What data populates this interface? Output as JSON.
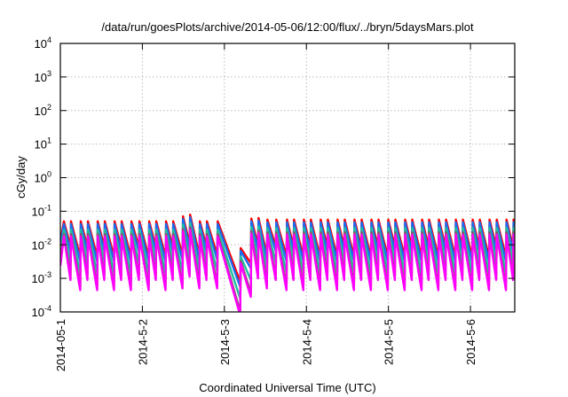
{
  "chart_data": {
    "type": "line",
    "title": "/data/run/goesPlots/archive/2014-05-06/12:00/flux/../bryn/5daysMars.plot",
    "xlabel": "Coordinated Universal Time (UTC)",
    "ylabel": "cGy/day",
    "yscale": "log",
    "ylim_log10": [
      -4,
      4
    ],
    "xlim_days": [
      0,
      5.54
    ],
    "grid": true,
    "y_ticks": [
      {
        "base": "10",
        "exp": "4",
        "log10": 4
      },
      {
        "base": "10",
        "exp": "3",
        "log10": 3
      },
      {
        "base": "10",
        "exp": "2",
        "log10": 2
      },
      {
        "base": "10",
        "exp": "1",
        "log10": 1
      },
      {
        "base": "10",
        "exp": "0",
        "log10": 0
      },
      {
        "base": "10",
        "exp": "-1",
        "log10": -1
      },
      {
        "base": "10",
        "exp": "-2",
        "log10": -2
      },
      {
        "base": "10",
        "exp": "-3",
        "log10": -3
      },
      {
        "base": "10",
        "exp": "-4",
        "log10": -4
      }
    ],
    "x_ticks": [
      {
        "label": "2014-05-1",
        "day": 0
      },
      {
        "label": "2014-5-2",
        "day": 1
      },
      {
        "label": "2014-5-3",
        "day": 2
      },
      {
        "label": "2014-5-4",
        "day": 3
      },
      {
        "label": "2014-5-5",
        "day": 4
      },
      {
        "label": "2014-5-6",
        "day": 5
      }
    ],
    "reference_start": [
      0,
      -1.9
    ],
    "reference_teeth_note": "each tooth: [day, peak log10, value log10 just before next tooth] for the top (red) series",
    "reference_teeth": [
      [
        0.043,
        -1.3,
        -2.05
      ],
      [
        0.13,
        -1.3,
        -2.35
      ],
      [
        0.249,
        -1.3,
        -2.05
      ],
      [
        0.336,
        -1.3,
        -2.35
      ],
      [
        0.455,
        -1.3,
        -2.05
      ],
      [
        0.542,
        -1.3,
        -2.35
      ],
      [
        0.661,
        -1.3,
        -2.05
      ],
      [
        0.748,
        -1.3,
        -2.35
      ],
      [
        0.867,
        -1.3,
        -2.05
      ],
      [
        0.964,
        -1.3,
        -2.35
      ],
      [
        1.083,
        -1.3,
        -2.05
      ],
      [
        1.17,
        -1.3,
        -2.35
      ],
      [
        1.289,
        -1.3,
        -2.05
      ],
      [
        1.376,
        -1.3,
        -2.3
      ],
      [
        1.495,
        -1.15,
        -1.95
      ],
      [
        1.582,
        -1.1,
        -2.3
      ],
      [
        1.701,
        -1.3,
        -2.05
      ],
      [
        1.788,
        -1.3,
        -2.3
      ],
      [
        1.918,
        -1.3,
        -3.1
      ],
      [
        2.199,
        -2.1,
        -2.55
      ],
      [
        2.329,
        -1.22,
        -2.0
      ],
      [
        2.416,
        -1.2,
        -2.3
      ],
      [
        2.524,
        -1.25,
        -2.05
      ],
      [
        2.633,
        -1.25,
        -2.35
      ],
      [
        2.763,
        -1.25,
        -2.05
      ],
      [
        2.849,
        -1.25,
        -2.35
      ],
      [
        2.969,
        -1.25,
        -2.05
      ],
      [
        3.055,
        -1.25,
        -2.35
      ],
      [
        3.174,
        -1.25,
        -2.05
      ],
      [
        3.261,
        -1.25,
        -2.35
      ],
      [
        3.38,
        -1.25,
        -2.05
      ],
      [
        3.467,
        -1.25,
        -2.35
      ],
      [
        3.586,
        -1.25,
        -2.05
      ],
      [
        3.673,
        -1.25,
        -2.35
      ],
      [
        3.792,
        -1.25,
        -2.05
      ],
      [
        3.879,
        -1.25,
        -2.35
      ],
      [
        3.998,
        -1.25,
        -2.05
      ],
      [
        4.085,
        -1.25,
        -2.35
      ],
      [
        4.204,
        -1.25,
        -2.05
      ],
      [
        4.29,
        -1.25,
        -2.35
      ],
      [
        4.41,
        -1.25,
        -2.05
      ],
      [
        4.496,
        -1.25,
        -2.35
      ],
      [
        4.615,
        -1.25,
        -2.05
      ],
      [
        4.702,
        -1.25,
        -2.35
      ],
      [
        4.821,
        -1.25,
        -2.05
      ],
      [
        4.908,
        -1.25,
        -2.35
      ],
      [
        5.027,
        -1.25,
        -2.05
      ],
      [
        5.114,
        -1.25,
        -2.35
      ],
      [
        5.233,
        -1.25,
        -2.05
      ],
      [
        5.32,
        -1.25,
        -2.35
      ],
      [
        5.439,
        -1.25,
        -2.05
      ],
      [
        5.526,
        -1.25,
        -1.6
      ]
    ],
    "series": [
      {
        "name": "series-red",
        "color": "#ff0000",
        "peak_offset": 0,
        "trough_offset": 0
      },
      {
        "name": "series-blue",
        "color": "#1a6cf0",
        "peak_offset": -0.08,
        "trough_offset": -0.15
      },
      {
        "name": "series-teal",
        "color": "#20c0a0",
        "peak_offset": -0.25,
        "trough_offset": -0.5
      },
      {
        "name": "series-yellow",
        "color": "#e8e000",
        "peak_offset": -0.4,
        "trough_offset": -0.95
      },
      {
        "name": "series-brown",
        "color": "#905070",
        "peak_offset": -0.38,
        "trough_offset": -0.88
      },
      {
        "name": "series-magenta",
        "color": "#ff00ff",
        "peak_offset": -0.45,
        "trough_offset": -1.0
      }
    ]
  }
}
